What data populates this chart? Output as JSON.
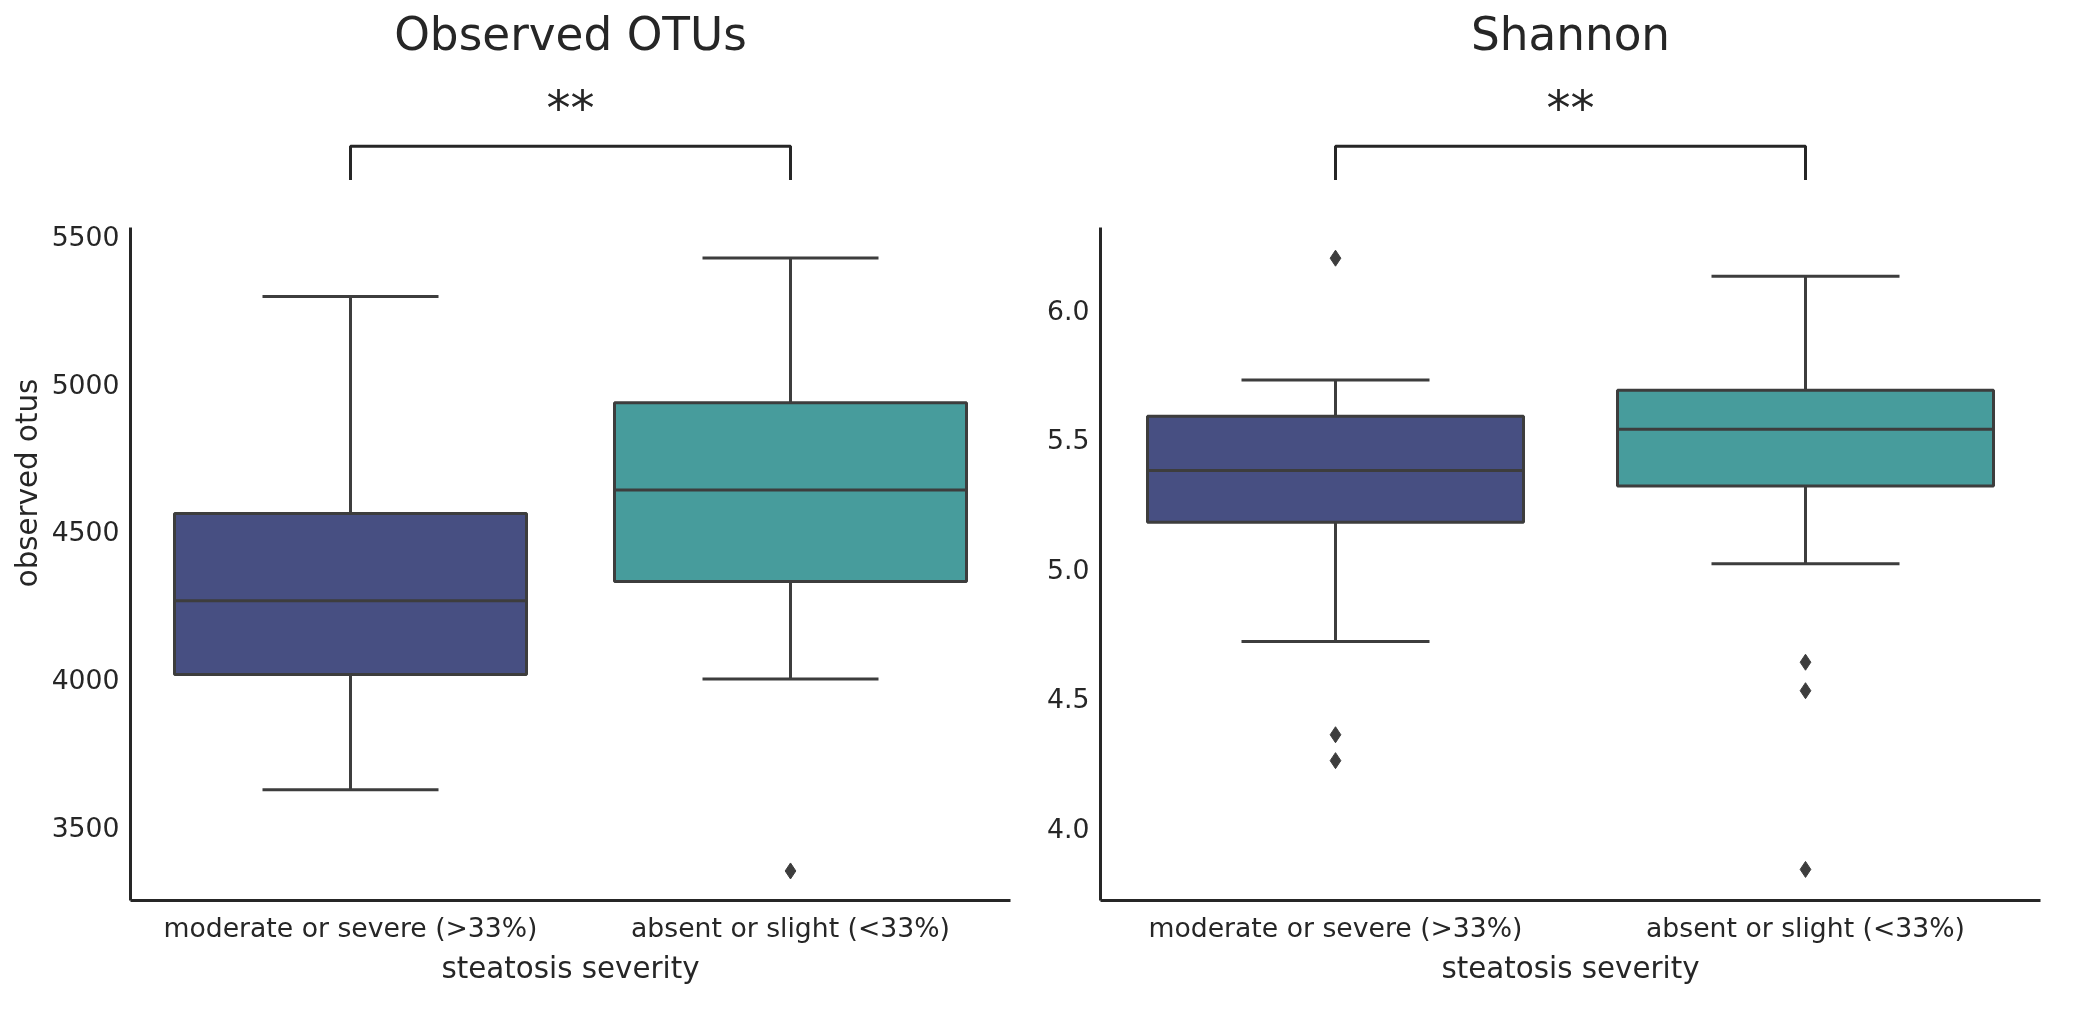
{
  "chart_data": [
    {
      "type": "box",
      "title": "Observed OTUs",
      "xlabel": "steatosis severity",
      "ylabel": "observed otus",
      "categories": [
        "moderate or severe (>33%)",
        "absent or slight (<33%)"
      ],
      "colors": [
        "#474f82",
        "#479c9c"
      ],
      "boxes": [
        {
          "low": 3625,
          "q1": 4015,
          "median": 4265,
          "q3": 4560,
          "high": 5295
        },
        {
          "low": 4000,
          "q1": 4330,
          "median": 4640,
          "q3": 4935,
          "high": 5425,
          "outliers": [
            3350
          ]
        }
      ],
      "ylim": [
        3250,
        5530
      ],
      "yticks": [
        3500,
        4000,
        4500,
        5000,
        5500
      ],
      "grid": false,
      "marker": "diamond",
      "annotations": [
        "**"
      ]
    },
    {
      "type": "box",
      "title": "Shannon",
      "xlabel": "steatosis severity",
      "categories": [
        "moderate or severe (>33%)",
        "absent or slight (<33%)"
      ],
      "colors": [
        "#474f82",
        "#479c9c"
      ],
      "boxes": [
        {
          "low": 4.72,
          "q1": 5.18,
          "median": 5.38,
          "q3": 5.59,
          "high": 5.73,
          "outliers": [
            6.2,
            4.36,
            4.26
          ]
        },
        {
          "low": 5.02,
          "q1": 5.32,
          "median": 5.54,
          "q3": 5.69,
          "high": 6.13,
          "outliers": [
            4.64,
            4.53,
            3.84
          ]
        }
      ],
      "ylim": [
        3.72,
        6.32
      ],
      "yticks": [
        {
          "value": 4,
          "label": "4.0"
        },
        4.5,
        {
          "value": 5,
          "label": "5.0"
        },
        5.5,
        {
          "value": 6,
          "label": "6.0"
        }
      ],
      "grid": false,
      "marker": "diamond",
      "annotations": [
        "**"
      ]
    }
  ]
}
